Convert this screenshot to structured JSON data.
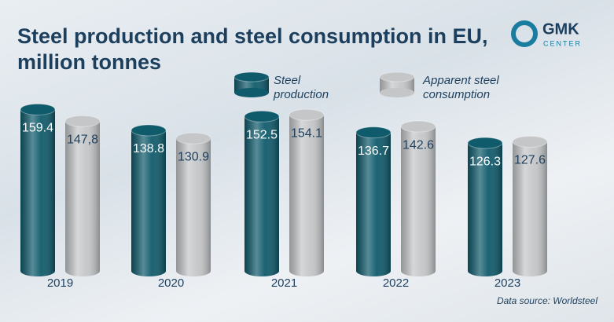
{
  "chart_data": {
    "type": "bar",
    "title": "Steel production and steel consumption in EU, million tonnes",
    "categories": [
      "2019",
      "2020",
      "2021",
      "2022",
      "2023"
    ],
    "series": [
      {
        "name": "Steel production",
        "color": "#0f5a6b",
        "values": [
          159.4,
          138.8,
          152.5,
          136.7,
          126.3
        ]
      },
      {
        "name": "Apparent steel consumption",
        "color": "#c4c6c8",
        "values": [
          147.8,
          130.9,
          154.1,
          142.6,
          127.6
        ],
        "value_labels": [
          "147,8",
          "130.9",
          "154.1",
          "142.6",
          "127.6"
        ]
      }
    ],
    "source": "Data source: Worldsteel"
  },
  "logo": {
    "name": "GMK",
    "subname": "CENTER"
  }
}
